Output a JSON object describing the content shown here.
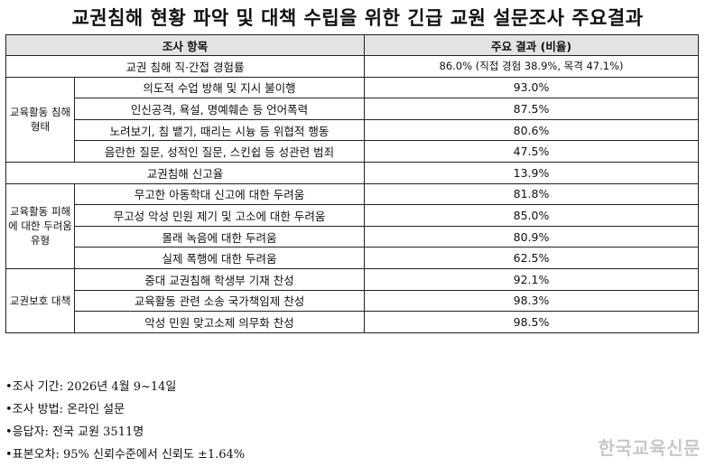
{
  "title": "교권침해 현황 파악 및 대책 수립을 위한 긴급 교원 설문조사 주요결과",
  "table": {
    "header": {
      "item": "조사 항목",
      "result": "주요 결과 (비율)"
    },
    "row_experience": {
      "label": "교권 침해 직·간접 경험률",
      "value": "86.0% (직접 경험 38.9%, 목격 47.1%)"
    },
    "group_types": {
      "category": "교육활동 침해 형태",
      "rows": [
        {
          "label": "의도적 수업 방해 및 지시 불이행",
          "value": "93.0%"
        },
        {
          "label": "인신공격, 욕설, 명예훼손 등 언어폭력",
          "value": "87.5%"
        },
        {
          "label": "노려보기, 침 뱉기, 때리는 시늉 등 위협적 행동",
          "value": "80.6%"
        },
        {
          "label": "음란한 질문, 성적인 질문, 스킨쉽 등 성관련 범죄",
          "value": "47.5%"
        }
      ]
    },
    "row_report": {
      "label": "교권침해 신고율",
      "value": "13.9%"
    },
    "group_fear": {
      "category": "교육활동 피해에 대한 두려움 유형",
      "rows": [
        {
          "label": "무고한 아동학대 신고에 대한 두려움",
          "value": "81.8%"
        },
        {
          "label": "무고성 악성 민원 제기 및 고소에 대한 두려움",
          "value": "85.0%"
        },
        {
          "label": "몰래 녹음에 대한 두려움",
          "value": "80.9%"
        },
        {
          "label": "실제 폭행에 대한 두려움",
          "value": "62.5%"
        }
      ]
    },
    "group_measures": {
      "category": "교권보호 대책",
      "rows": [
        {
          "label": "중대 교권침해 학생부 기재 찬성",
          "value": "92.1%"
        },
        {
          "label": "교육활동 관련 소송 국가책임제 찬성",
          "value": "98.3%"
        },
        {
          "label": "악성 민원 맞고소제 의무화 찬성",
          "value": "98.5%"
        }
      ]
    }
  },
  "notes": [
    "•조사 기간: 2026년 4월 9~14일",
    "•조사 방법: 온라인 설문",
    "•응답자: 전국 교원 3511명",
    "•표본오차: 95% 신뢰수준에서 신뢰도 ±1.64%"
  ],
  "watermark": "한국교육신문"
}
